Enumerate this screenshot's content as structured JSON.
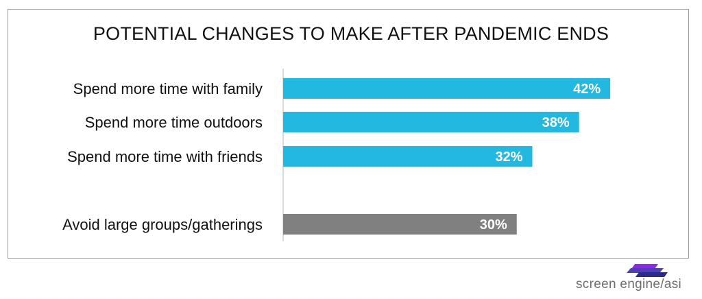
{
  "chart_data": {
    "type": "bar",
    "orientation": "horizontal",
    "title": "POTENTIAL CHANGES TO MAKE AFTER PANDEMIC ENDS",
    "categories": [
      "Spend more time with family",
      "Spend more time outdoors",
      "Spend more time with friends",
      "Avoid large groups/gatherings"
    ],
    "values": [
      42,
      38,
      32,
      30
    ],
    "value_labels": [
      "42%",
      "38%",
      "32%",
      "30%"
    ],
    "bar_colors": [
      "#23b8e0",
      "#23b8e0",
      "#23b8e0",
      "#808080"
    ],
    "xlim": [
      0,
      45
    ],
    "grid": false,
    "legend": "none"
  },
  "brand": {
    "text": "screen engine/asi",
    "colors": [
      "#8a2be2",
      "#4b3fb5",
      "#2a2a8a"
    ]
  }
}
